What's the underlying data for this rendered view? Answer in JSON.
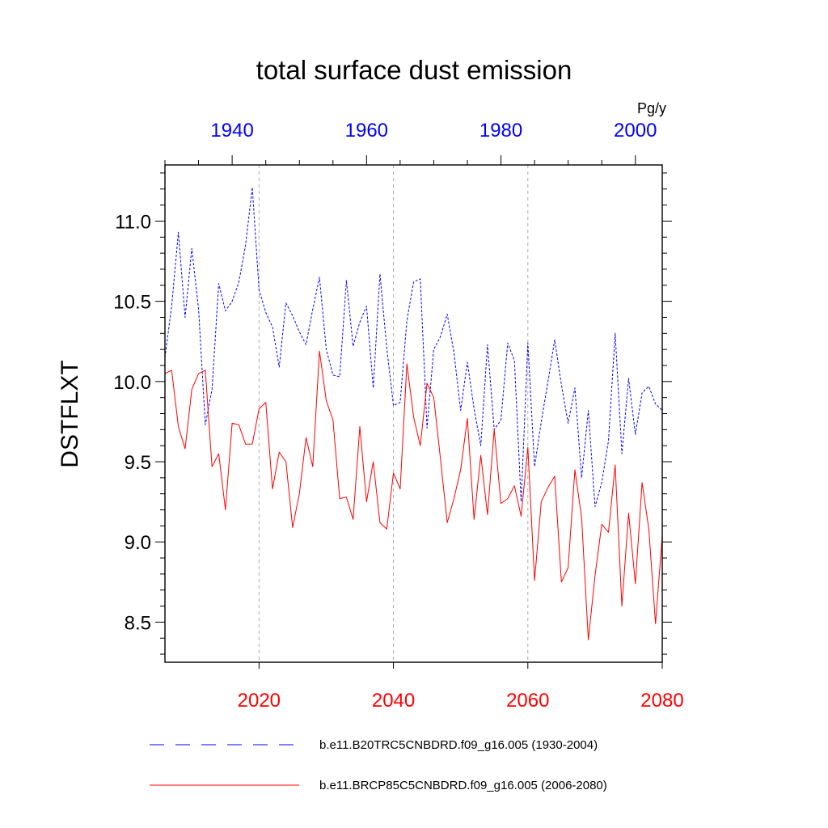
{
  "chart_data": {
    "type": "line",
    "title": "total surface dust emission",
    "ylabel": "DSTFLXT",
    "units": "Pg/y",
    "ylim": [
      8.25,
      11.35
    ],
    "yticks": [
      8.5,
      9.0,
      9.5,
      10.0,
      10.5,
      11.0
    ],
    "ytick_labels": [
      "8.5",
      "9.0",
      "9.5",
      "10.0",
      "10.5",
      "11.0"
    ],
    "grid": "vertical dashed at bottom-axis ticks",
    "top_axis": {
      "color": "#0000ff",
      "range": [
        1930,
        2004
      ],
      "ticks": [
        1940,
        1960,
        1980,
        2000
      ],
      "tick_labels": [
        "1940",
        "1960",
        "1980",
        "2000"
      ]
    },
    "bottom_axis": {
      "color": "#ff0000",
      "range": [
        2006,
        2080
      ],
      "ticks": [
        2020,
        2040,
        2060,
        2080
      ],
      "tick_labels": [
        "2020",
        "2040",
        "2060",
        "2080"
      ]
    },
    "series": [
      {
        "name": "b.e11.B20TRC5CNBDRD.f09_g16.005 (1930-2004)",
        "color": "#0000ff",
        "style": "dashed",
        "x_start": 1930,
        "values": [
          10.15,
          10.47,
          10.93,
          10.4,
          10.83,
          10.45,
          9.73,
          9.95,
          10.61,
          10.44,
          10.5,
          10.62,
          10.85,
          11.21,
          10.57,
          10.43,
          10.34,
          10.09,
          10.49,
          10.41,
          10.31,
          10.23,
          10.45,
          10.65,
          10.2,
          10.04,
          10.03,
          10.63,
          10.22,
          10.37,
          10.47,
          9.96,
          10.67,
          10.21,
          9.85,
          9.87,
          10.38,
          10.62,
          10.64,
          9.71,
          10.2,
          10.28,
          10.42,
          10.18,
          9.82,
          10.12,
          9.83,
          9.6,
          10.23,
          9.7,
          9.76,
          10.24,
          10.13,
          9.25,
          10.24,
          9.47,
          9.75,
          10.0,
          10.26,
          9.98,
          9.74,
          9.96,
          9.4,
          9.82,
          9.22,
          9.37,
          9.63,
          10.3,
          9.55,
          10.02,
          9.67,
          9.93,
          9.97,
          9.86,
          9.82
        ]
      },
      {
        "name": "b.e11.BRCP85C5CNBDRD.f09_g16.005 (2006-2080)",
        "color": "#ff0000",
        "style": "solid",
        "x_start": 2006,
        "values": [
          10.05,
          10.07,
          9.72,
          9.58,
          9.95,
          10.05,
          10.07,
          9.47,
          9.55,
          9.2,
          9.74,
          9.73,
          9.61,
          9.61,
          9.83,
          9.87,
          9.33,
          9.56,
          9.5,
          9.09,
          9.3,
          9.65,
          9.47,
          10.19,
          9.88,
          9.76,
          9.27,
          9.28,
          9.14,
          9.72,
          9.25,
          9.5,
          9.12,
          9.08,
          9.43,
          9.33,
          10.11,
          9.78,
          9.6,
          9.99,
          9.9,
          9.52,
          9.12,
          9.27,
          9.45,
          9.77,
          9.14,
          9.54,
          9.17,
          9.7,
          9.24,
          9.27,
          9.35,
          9.16,
          9.59,
          8.76,
          9.25,
          9.34,
          9.41,
          8.75,
          8.84,
          9.45,
          9.15,
          8.39,
          8.79,
          9.11,
          9.06,
          9.48,
          8.6,
          9.18,
          8.74,
          9.37,
          9.08,
          8.49,
          9.04
        ]
      }
    ]
  }
}
